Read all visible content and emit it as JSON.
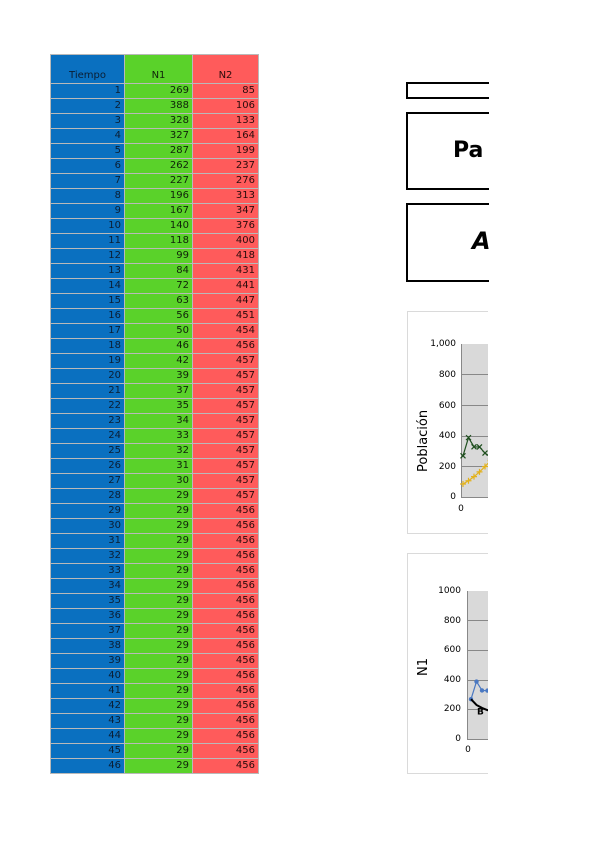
{
  "table": {
    "headers": [
      "Tiempo",
      "N1",
      "N2"
    ],
    "rows": [
      [
        1,
        269,
        85
      ],
      [
        2,
        388,
        106
      ],
      [
        3,
        328,
        133
      ],
      [
        4,
        327,
        164
      ],
      [
        5,
        287,
        199
      ],
      [
        6,
        262,
        237
      ],
      [
        7,
        227,
        276
      ],
      [
        8,
        196,
        313
      ],
      [
        9,
        167,
        347
      ],
      [
        10,
        140,
        376
      ],
      [
        11,
        118,
        400
      ],
      [
        12,
        99,
        418
      ],
      [
        13,
        84,
        431
      ],
      [
        14,
        72,
        441
      ],
      [
        15,
        63,
        447
      ],
      [
        16,
        56,
        451
      ],
      [
        17,
        50,
        454
      ],
      [
        18,
        46,
        456
      ],
      [
        19,
        42,
        457
      ],
      [
        20,
        39,
        457
      ],
      [
        21,
        37,
        457
      ],
      [
        22,
        35,
        457
      ],
      [
        23,
        34,
        457
      ],
      [
        24,
        33,
        457
      ],
      [
        25,
        32,
        457
      ],
      [
        26,
        31,
        457
      ],
      [
        27,
        30,
        457
      ],
      [
        28,
        29,
        457
      ],
      [
        29,
        29,
        456
      ],
      [
        30,
        29,
        456
      ],
      [
        31,
        29,
        456
      ],
      [
        32,
        29,
        456
      ],
      [
        33,
        29,
        456
      ],
      [
        34,
        29,
        456
      ],
      [
        35,
        29,
        456
      ],
      [
        36,
        29,
        456
      ],
      [
        37,
        29,
        456
      ],
      [
        38,
        29,
        456
      ],
      [
        39,
        29,
        456
      ],
      [
        40,
        29,
        456
      ],
      [
        41,
        29,
        456
      ],
      [
        42,
        29,
        456
      ],
      [
        43,
        29,
        456
      ],
      [
        44,
        29,
        456
      ],
      [
        45,
        29,
        456
      ],
      [
        46,
        29,
        456
      ]
    ]
  },
  "boxes": {
    "title_text": "Pa",
    "subtitle_text": "A"
  },
  "chart_data": [
    {
      "type": "line",
      "ylabel": "Población",
      "y_ticks": [
        "1,000",
        "800",
        "600",
        "400",
        "200",
        "0"
      ],
      "x_ticks": [
        "0"
      ],
      "ylim": [
        0,
        1000
      ],
      "series": [
        {
          "values": [
            269,
            388,
            328,
            327,
            287,
            262,
            227,
            196,
            167,
            140
          ],
          "color": "#1f4f1f",
          "marker": "x"
        },
        {
          "values": [
            85,
            106,
            133,
            164,
            199,
            237,
            276,
            313,
            347,
            376
          ],
          "color": "#e3b21c",
          "marker": "+"
        }
      ]
    },
    {
      "type": "line",
      "ylabel": "N1",
      "y_ticks": [
        "1000",
        "800",
        "600",
        "400",
        "200",
        "0"
      ],
      "x_ticks": [
        "0"
      ],
      "ylim": [
        0,
        1000
      ],
      "point_label": "B",
      "series": [
        {
          "values": [
            269,
            388,
            328,
            327,
            287,
            262
          ],
          "color": "#4a78c2",
          "marker": "dot"
        },
        {
          "values": [
            269,
            230,
            210,
            195,
            185,
            180
          ],
          "color": "#000000",
          "marker": "none"
        }
      ]
    }
  ]
}
